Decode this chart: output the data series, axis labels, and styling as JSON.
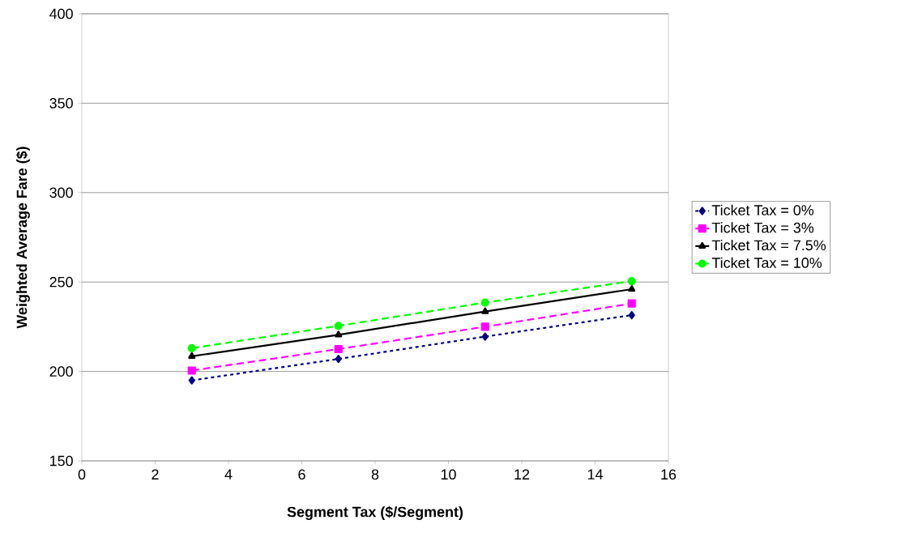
{
  "chart_data": {
    "type": "line",
    "xlabel": "Segment Tax ($/Segment)",
    "ylabel": "Weighted Average Fare ($)",
    "x": [
      3,
      7,
      11,
      15
    ],
    "series": [
      {
        "name": "Ticket Tax = 0%",
        "color": "#000080",
        "values": [
          195,
          207,
          219.5,
          231.5
        ],
        "marker": "diamond",
        "line_style": "dotted"
      },
      {
        "name": "Ticket Tax = 3%",
        "color": "#ff00ff",
        "values": [
          200.5,
          212.5,
          225,
          238
        ],
        "marker": "square",
        "line_style": "dashed"
      },
      {
        "name": "Ticket Tax = 7.5%",
        "color": "#000000",
        "values": [
          208.5,
          220.5,
          233.5,
          246
        ],
        "marker": "triangle",
        "line_style": "solid"
      },
      {
        "name": "Ticket Tax = 10%",
        "color": "#00ff00",
        "values": [
          213,
          225.5,
          238.5,
          250.5
        ],
        "marker": "circle",
        "line_style": "dashed"
      }
    ],
    "xlim": [
      0,
      16
    ],
    "xticks": [
      0,
      2,
      4,
      6,
      8,
      10,
      12,
      14,
      16
    ],
    "ylim": [
      150,
      400
    ],
    "yticks": [
      150,
      200,
      250,
      300,
      350,
      400
    ],
    "grid": "y",
    "legend": "right"
  }
}
